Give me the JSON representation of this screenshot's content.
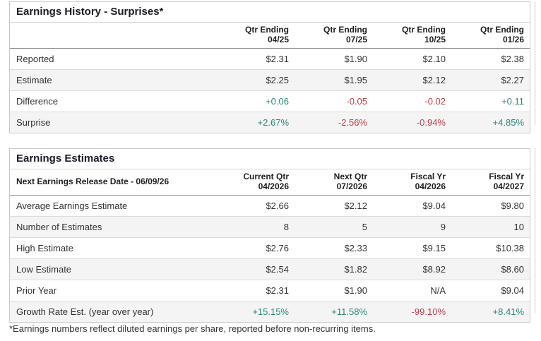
{
  "colors": {
    "positive": "#2b877b",
    "negative": "#c23b4b"
  },
  "history": {
    "title": "Earnings History - Surprises*",
    "columns": [
      {
        "line1": "Qtr Ending",
        "line2": "04/25"
      },
      {
        "line1": "Qtr Ending",
        "line2": "07/25"
      },
      {
        "line1": "Qtr Ending",
        "line2": "10/25"
      },
      {
        "line1": "Qtr Ending",
        "line2": "01/26"
      }
    ],
    "rows": [
      {
        "label": "Reported",
        "values": [
          {
            "text": "$2.31"
          },
          {
            "text": "$1.90"
          },
          {
            "text": "$2.10"
          },
          {
            "text": "$2.38"
          }
        ]
      },
      {
        "label": "Estimate",
        "values": [
          {
            "text": "$2.25"
          },
          {
            "text": "$1.95"
          },
          {
            "text": "$2.12"
          },
          {
            "text": "$2.27"
          }
        ]
      },
      {
        "label": "Difference",
        "values": [
          {
            "text": "+0.06",
            "tone": "pos"
          },
          {
            "text": "-0.05",
            "tone": "neg"
          },
          {
            "text": "-0.02",
            "tone": "neg"
          },
          {
            "text": "+0.11",
            "tone": "pos"
          }
        ]
      },
      {
        "label": "Surprise",
        "values": [
          {
            "text": "+2.67%",
            "tone": "pos"
          },
          {
            "text": "-2.56%",
            "tone": "neg"
          },
          {
            "text": "-0.94%",
            "tone": "neg"
          },
          {
            "text": "+4.85%",
            "tone": "pos"
          }
        ]
      }
    ]
  },
  "estimates": {
    "title": "Earnings Estimates",
    "release_label": "Next Earnings Release Date - 06/09/26",
    "columns": [
      {
        "line1": "Current Qtr",
        "line2": "04/2026"
      },
      {
        "line1": "Next Qtr",
        "line2": "07/2026"
      },
      {
        "line1": "Fiscal Yr",
        "line2": "04/2026"
      },
      {
        "line1": "Fiscal Yr",
        "line2": "04/2027"
      }
    ],
    "rows": [
      {
        "label": "Average Earnings Estimate",
        "values": [
          {
            "text": "$2.66"
          },
          {
            "text": "$2.12"
          },
          {
            "text": "$9.04"
          },
          {
            "text": "$9.80"
          }
        ]
      },
      {
        "label": "Number of Estimates",
        "values": [
          {
            "text": "8"
          },
          {
            "text": "5"
          },
          {
            "text": "9"
          },
          {
            "text": "10"
          }
        ]
      },
      {
        "label": "High Estimate",
        "values": [
          {
            "text": "$2.76"
          },
          {
            "text": "$2.33"
          },
          {
            "text": "$9.15"
          },
          {
            "text": "$10.38"
          }
        ]
      },
      {
        "label": "Low Estimate",
        "values": [
          {
            "text": "$2.54"
          },
          {
            "text": "$1.82"
          },
          {
            "text": "$8.92"
          },
          {
            "text": "$8.60"
          }
        ]
      },
      {
        "label": "Prior Year",
        "values": [
          {
            "text": "$2.31"
          },
          {
            "text": "$1.90"
          },
          {
            "text": "N/A"
          },
          {
            "text": "$9.04"
          }
        ]
      },
      {
        "label": "Growth Rate Est. (year over year)",
        "values": [
          {
            "text": "+15.15%",
            "tone": "pos"
          },
          {
            "text": "+11.58%",
            "tone": "pos"
          },
          {
            "text": "-99.10%",
            "tone": "neg"
          },
          {
            "text": "+8.41%",
            "tone": "pos"
          }
        ]
      }
    ]
  },
  "footnote": "*Earnings numbers reflect diluted earnings per share, reported before non-recurring items."
}
